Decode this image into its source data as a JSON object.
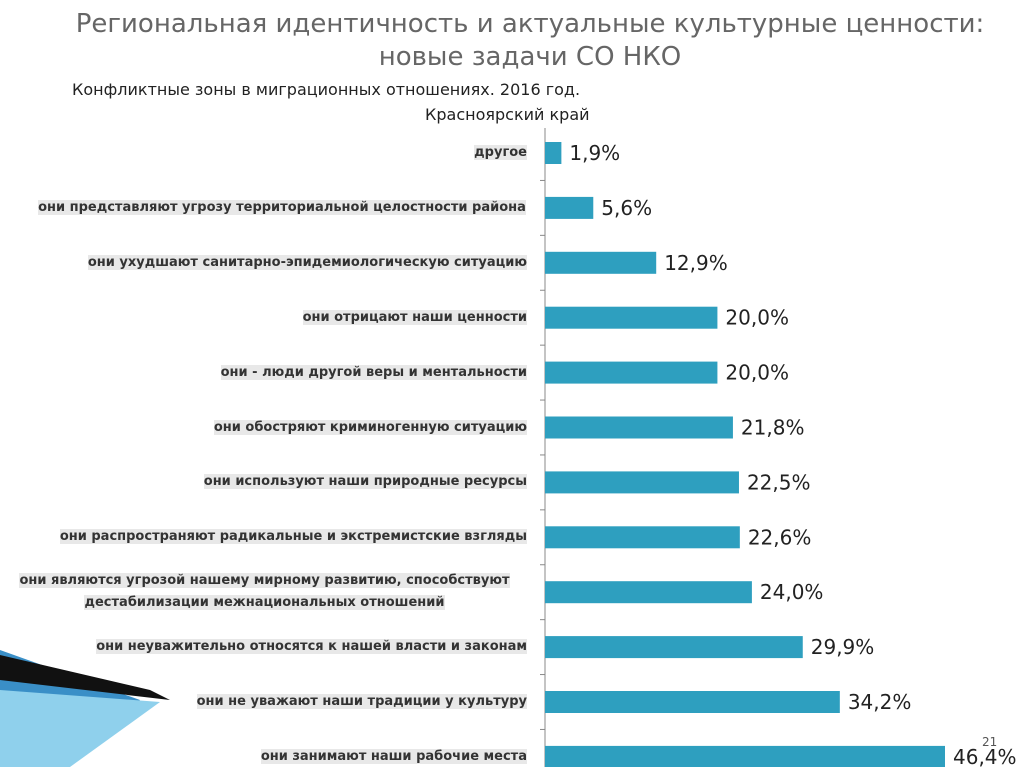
{
  "slide": {
    "title_lines": [
      "Региональная идентичность и актуальные культурные ценности:",
      "новые задачи СО НКО"
    ],
    "page_number": "21"
  },
  "chart_data": {
    "type": "bar",
    "orientation": "horizontal",
    "title": [
      "Конфликтные зоны в миграционных отношениях. 2016 год.",
      "Красноярский край"
    ],
    "categories": [
      "другое",
      "они представляют угрозу территориальной целостности района",
      "они ухудшают санитарно-эпидемиологическую ситуацию",
      "они отрицают наши ценности",
      "они - люди другой веры и ментальности",
      "они обостряют криминогенную ситуацию",
      "они используют наши природные ресурсы",
      "они распространяют радикальные и экстремистские взгляды",
      "они являются угрозой нашему мирному развитию, способствуют дестабилизации межнациональных отношений",
      "они неуважительно относятся к нашей власти и законам",
      "они не уважают наши традиции у культуру",
      "они занимают наши рабочие места"
    ],
    "values": [
      1.9,
      5.6,
      12.9,
      20.0,
      20.0,
      21.8,
      22.5,
      22.6,
      24.0,
      29.9,
      34.2,
      46.4
    ],
    "value_labels": [
      "1,9%",
      "5,6%",
      "12,9%",
      "20,0%",
      "20,0%",
      "21,8%",
      "22,5%",
      "22,6%",
      "24,0%",
      "29,9%",
      "34,2%",
      "46,4%"
    ],
    "color": "#2e9fbf"
  }
}
